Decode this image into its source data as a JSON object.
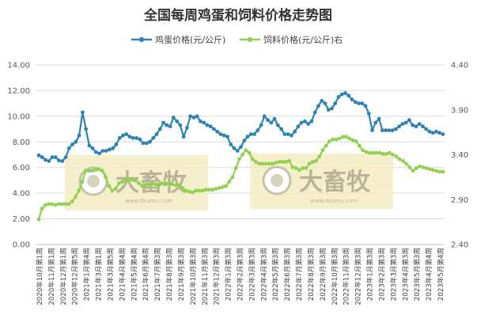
{
  "chart_data": {
    "type": "line",
    "title": "全国每周鸡蛋和饲料价格走势图",
    "legend": {
      "position": "top"
    },
    "grid": true,
    "y_left": {
      "ylim": [
        0,
        14
      ],
      "ticks": [
        "0.00",
        "2.00",
        "4.00",
        "6.00",
        "8.00",
        "10.00",
        "12.00",
        "14.00"
      ]
    },
    "y_right": {
      "ylim": [
        2.4,
        4.4
      ],
      "ticks": [
        "2.40",
        "2.90",
        "3.40",
        "3.90",
        "4.40"
      ]
    },
    "x_labels": [
      "2020年10月第1周",
      "2020年11月第1周",
      "2020年12月第1周",
      "2020年12月第5周",
      "2021年1月第4周",
      "2021年3月第1周",
      "2021年3月第5周",
      "2021年4月第4周",
      "2021年5月第4周",
      "2021年6月第4周",
      "2021年7月第3周",
      "2021年8月第3周",
      "2021年9月第3周",
      "2021年10月第3周",
      "2021年11月第3周",
      "2021年12月第3周",
      "2022年1月第3周",
      "2022年2月第3周",
      "2022年3月第3周",
      "2022年4月第3周",
      "2022年5月第3周",
      "2022年6月第3周",
      "2022年7月第3周",
      "2022年8月第3周",
      "2022年9月第3周",
      "2022年10月第3周",
      "2022年11月第3周",
      "2022年12月第3周",
      "2023年1月第3周",
      "2023年2月第3周",
      "2023年3月第3周",
      "2023年4月第3周",
      "2023年5月第3周",
      "2023年4月第4周",
      "2023年5月第4周"
    ],
    "series": [
      {
        "name": "鸡蛋价格(元/公斤)",
        "axis": "left",
        "color": "#2e83b4",
        "values": [
          6.95,
          6.8,
          6.6,
          6.5,
          6.8,
          6.8,
          6.55,
          6.5,
          6.8,
          7.5,
          7.8,
          8.0,
          8.5,
          10.3,
          9.0,
          7.7,
          7.5,
          7.2,
          7.1,
          7.3,
          7.3,
          7.4,
          7.5,
          7.8,
          8.3,
          8.5,
          8.6,
          8.4,
          8.3,
          8.3,
          8.2,
          7.9,
          7.9,
          8.0,
          8.3,
          8.6,
          9.0,
          9.5,
          9.3,
          9.2,
          9.9,
          9.6,
          9.3,
          8.4,
          9.1,
          10.0,
          9.9,
          10.0,
          9.6,
          9.5,
          9.3,
          9.2,
          9.0,
          8.8,
          8.6,
          8.5,
          8.4,
          7.8,
          7.5,
          7.3,
          7.6,
          8.1,
          8.4,
          8.6,
          8.6,
          8.9,
          9.3,
          10.0,
          9.7,
          9.5,
          9.8,
          9.3,
          9.0,
          8.6,
          8.6,
          8.5,
          8.8,
          9.2,
          9.5,
          9.6,
          9.4,
          9.6,
          10.3,
          10.8,
          11.2,
          11.0,
          10.5,
          10.6,
          11.0,
          11.5,
          11.7,
          11.8,
          11.6,
          11.3,
          11.1,
          11.0,
          11.0,
          10.8,
          10.2,
          8.9,
          9.5,
          9.8,
          8.9,
          8.9,
          8.9,
          8.9,
          9.0,
          9.2,
          9.4,
          9.5,
          9.7,
          9.3,
          9.2,
          9.4,
          9.2,
          9.0,
          8.8,
          8.7,
          8.8,
          8.7,
          8.6
        ]
      },
      {
        "name": "饲料价格(元/公斤)右",
        "axis": "right",
        "color": "#92d050",
        "values": [
          2.68,
          2.8,
          2.84,
          2.85,
          2.85,
          2.84,
          2.85,
          2.85,
          2.85,
          2.85,
          2.88,
          2.93,
          3.0,
          3.1,
          3.22,
          3.22,
          3.22,
          3.23,
          3.24,
          3.22,
          3.15,
          3.05,
          3.0,
          3.02,
          3.08,
          3.1,
          3.12,
          3.12,
          3.12,
          3.11,
          3.08,
          3.05,
          3.06,
          3.07,
          3.08,
          3.07,
          3.06,
          3.08,
          3.08,
          3.08,
          3.07,
          3.06,
          3.06,
          3.03,
          3.0,
          2.99,
          2.98,
          3.0,
          3.0,
          3.0,
          3.01,
          3.01,
          3.01,
          3.02,
          3.03,
          3.04,
          3.05,
          3.1,
          3.15,
          3.25,
          3.35,
          3.4,
          3.45,
          3.42,
          3.35,
          3.32,
          3.3,
          3.3,
          3.3,
          3.3,
          3.3,
          3.31,
          3.32,
          3.32,
          3.32,
          3.33,
          3.26,
          3.25,
          3.23,
          3.25,
          3.25,
          3.3,
          3.32,
          3.33,
          3.38,
          3.45,
          3.5,
          3.55,
          3.57,
          3.57,
          3.58,
          3.6,
          3.6,
          3.58,
          3.56,
          3.55,
          3.5,
          3.45,
          3.43,
          3.42,
          3.42,
          3.42,
          3.42,
          3.41,
          3.41,
          3.42,
          3.4,
          3.38,
          3.35,
          3.33,
          3.3,
          3.26,
          3.22,
          3.25,
          3.27,
          3.26,
          3.25,
          3.24,
          3.23,
          3.22,
          3.21,
          3.21
        ]
      }
    ]
  },
  "watermark": {
    "brand": "大畜牧",
    "url": "www.dxumu.com"
  },
  "colors": {
    "grid": "#d9d9d9",
    "axis": "#bfbfbf",
    "watermark_bg": "#f3eab9"
  },
  "icons": {
    "watermark_logo": "circle-logo-icon"
  }
}
